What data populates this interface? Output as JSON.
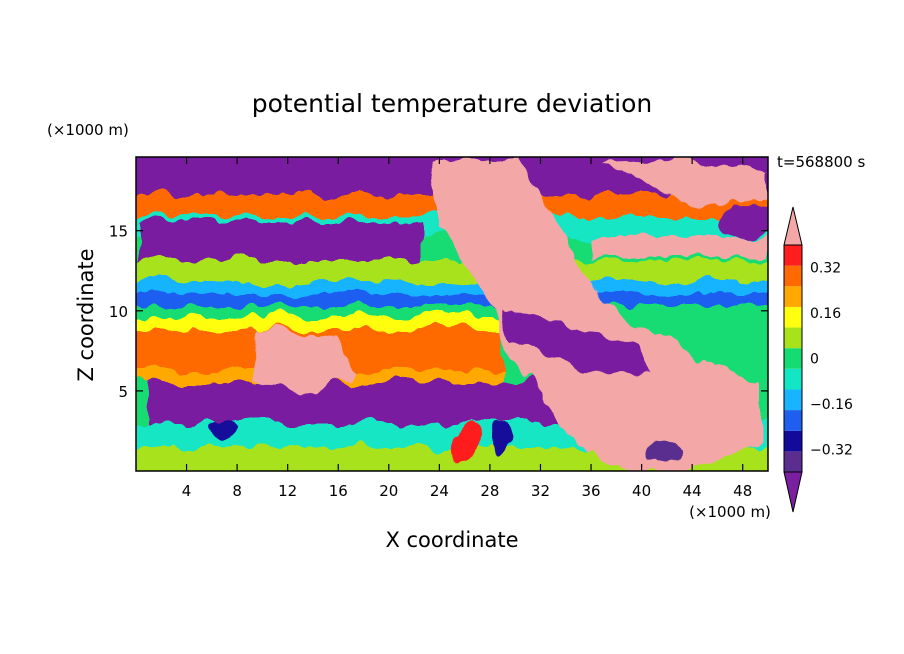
{
  "chart_data": {
    "type": "heatmap",
    "title": "potential temperature deviation",
    "xlabel": "X coordinate",
    "ylabel": "Z coordinate",
    "x_unit": "(×1000 m)",
    "y_unit": "(×1000 m)",
    "time_label": "t=568800 s",
    "xlim": [
      0,
      50
    ],
    "ylim": [
      0,
      19.6
    ],
    "x_ticks": [
      4,
      8,
      12,
      16,
      20,
      24,
      28,
      32,
      36,
      40,
      44,
      48
    ],
    "y_ticks": [
      5,
      10,
      15
    ],
    "colorbar": {
      "levels": [
        -0.4,
        -0.32,
        -0.24,
        -0.16,
        -0.08,
        0,
        0.08,
        0.16,
        0.24,
        0.32,
        0.4
      ],
      "tick_labels": [
        -0.32,
        -0.16,
        0,
        0.16,
        0.32
      ],
      "colors": [
        "#5a2d8f",
        "#120a9a",
        "#1f5ff0",
        "#18b4ff",
        "#12e6c4",
        "#14dc73",
        "#a8e21a",
        "#ffff10",
        "#ffa800",
        "#ff6a00",
        "#ff1e1e"
      ],
      "under_color": "#7a1fa0",
      "over_color": "#f4a7a7",
      "extend": "both"
    },
    "features": [
      {
        "x": [
          0,
          50
        ],
        "z": [
          19.6,
          15.5
        ],
        "level": "under",
        "note": "purple / blue patches across upper layer"
      },
      {
        "x": [
          0,
          50
        ],
        "z": [
          13.5,
          12.0
        ],
        "level": 0.08,
        "note": "green/yellow band"
      },
      {
        "x": [
          0,
          50
        ],
        "z": [
          11.2,
          10.2
        ],
        "level": -0.16,
        "note": "blue band"
      },
      {
        "x": [
          0,
          28
        ],
        "z": [
          9.8,
          7.2
        ],
        "level": 0.32,
        "note": "orange-red band"
      },
      {
        "x": [
          24,
          50
        ],
        "z": [
          14.5,
          7.5
        ],
        "level": "over",
        "note": "pink tongue descending eastward"
      },
      {
        "x": [
          31,
          50
        ],
        "z": [
          8.8,
          6.5
        ],
        "level": "under",
        "note": "purple wedge"
      },
      {
        "x": [
          0,
          50
        ],
        "z": [
          3.5,
          0
        ],
        "level": 0.0,
        "note": "mixed lower layer"
      }
    ]
  }
}
